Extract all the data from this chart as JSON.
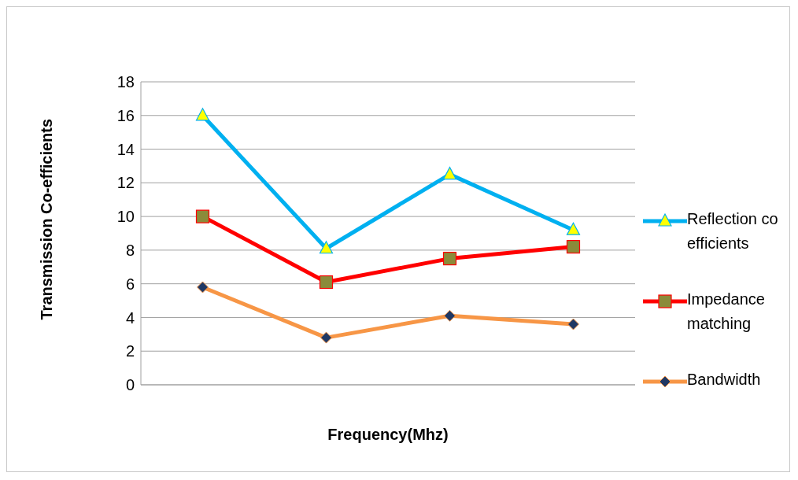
{
  "chart_data": {
    "type": "line",
    "xlabel": "Frequency(Mhz)",
    "ylabel": "Transmission Co-efficients",
    "categories": [
      null,
      null,
      null,
      null
    ],
    "series": [
      {
        "name": "Reflection co efficients",
        "color": "#00b0f0",
        "marker": "triangle",
        "values": [
          16,
          8.1,
          12.5,
          9.2
        ]
      },
      {
        "name": "Impedance matching",
        "color": "#ff0000",
        "marker": "square",
        "values": [
          10,
          6.1,
          7.5,
          8.2
        ]
      },
      {
        "name": "Bandwidth",
        "color": "#f79646",
        "marker": "diamond",
        "values": [
          5.8,
          2.8,
          4.1,
          3.6
        ]
      }
    ],
    "ylim": [
      0,
      18
    ],
    "yticks": [
      0,
      2,
      4,
      6,
      8,
      10,
      12,
      14,
      16,
      18
    ],
    "grid": "y",
    "legend": "right"
  }
}
